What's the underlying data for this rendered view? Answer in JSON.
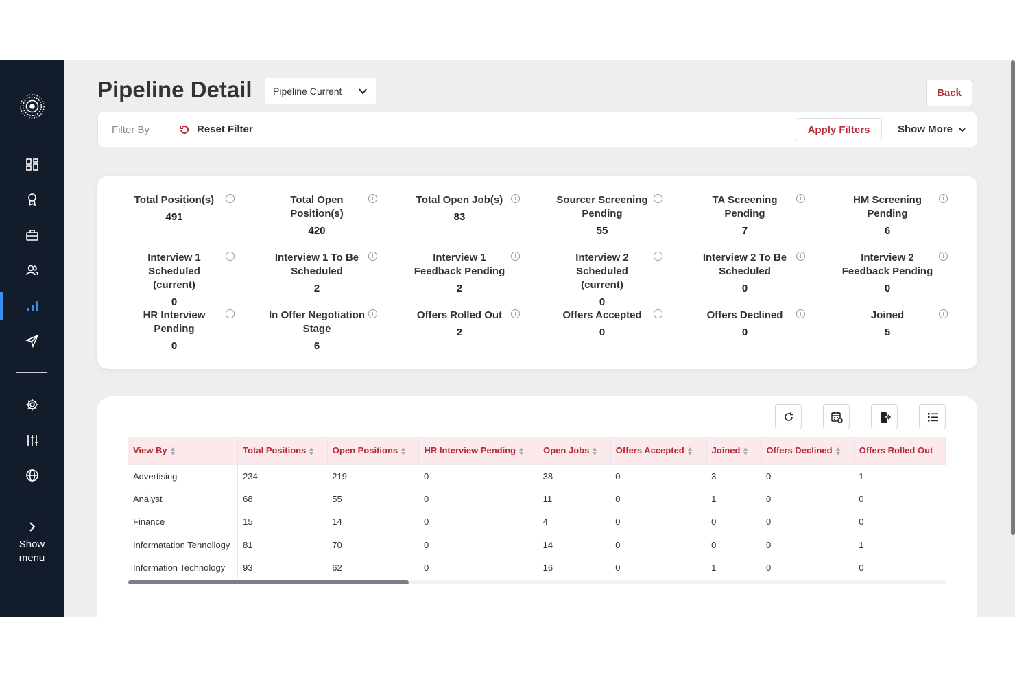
{
  "sidebar": {
    "items": [
      {
        "icon": "dashboard-icon"
      },
      {
        "icon": "award-icon"
      },
      {
        "icon": "briefcase-icon"
      },
      {
        "icon": "users-icon"
      },
      {
        "icon": "bar-chart-icon",
        "active": true
      },
      {
        "icon": "send-icon"
      },
      {
        "icon": "gear-icon"
      },
      {
        "icon": "sliders-icon"
      },
      {
        "icon": "globe-icon"
      }
    ],
    "show_menu": [
      "Show",
      "menu"
    ]
  },
  "header": {
    "title": "Pipeline Detail",
    "select_value": "Pipeline Current",
    "back_label": "Back"
  },
  "filter": {
    "label": "Filter By",
    "reset_label": "Reset Filter",
    "apply_label": "Apply Filters",
    "show_more_label": "Show More"
  },
  "stats": [
    {
      "label": "Total Position(s)",
      "value": "491"
    },
    {
      "label": "Total Open Position(s)",
      "value": "420"
    },
    {
      "label": "Total Open Job(s)",
      "value": "83"
    },
    {
      "label": "Sourcer Screening Pending",
      "value": "55"
    },
    {
      "label": "TA Screening Pending",
      "value": "7"
    },
    {
      "label": "HM Screening Pending",
      "value": "6"
    },
    {
      "label": "Interview 1 Scheduled (current)",
      "value": "0"
    },
    {
      "label": "Interview 1 To Be Scheduled",
      "value": "2"
    },
    {
      "label": "Interview 1 Feedback Pending",
      "value": "2"
    },
    {
      "label": "Interview 2 Scheduled (current)",
      "value": "0"
    },
    {
      "label": "Interview 2 To Be Scheduled",
      "value": "0"
    },
    {
      "label": "Interview 2 Feedback Pending",
      "value": "0"
    },
    {
      "label": "HR Interview Pending",
      "value": "0"
    },
    {
      "label": "In Offer Negotiation Stage",
      "value": "6"
    },
    {
      "label": "Offers Rolled Out",
      "value": "2"
    },
    {
      "label": "Offers Accepted",
      "value": "0"
    },
    {
      "label": "Offers Declined",
      "value": "0"
    },
    {
      "label": "Joined",
      "value": "5"
    }
  ],
  "info_glyph": "i",
  "table": {
    "columns": [
      "View By",
      "Total Positions",
      "Open Positions",
      "HR Interview Pending",
      "Open Jobs",
      "Offers Accepted",
      "Joined",
      "Offers Declined",
      "Offers Rolled Out"
    ],
    "rows": [
      [
        "Advertising",
        "234",
        "219",
        "0",
        "38",
        "0",
        "3",
        "0",
        "1"
      ],
      [
        "Analyst",
        "68",
        "55",
        "0",
        "11",
        "0",
        "1",
        "0",
        "0"
      ],
      [
        "Finance",
        "15",
        "14",
        "0",
        "4",
        "0",
        "0",
        "0",
        "0"
      ],
      [
        "Informatation Tehnollogy",
        "81",
        "70",
        "0",
        "14",
        "0",
        "0",
        "0",
        "1"
      ],
      [
        "Information Technology",
        "93",
        "62",
        "0",
        "16",
        "0",
        "1",
        "0",
        "0"
      ]
    ]
  },
  "toolbar": [
    "refresh-icon",
    "calendar-icon",
    "export-icon",
    "list-icon"
  ],
  "colors": {
    "accent": "#b52a35",
    "sidebar": "#121c2b",
    "header_bg": "#fbe9ec",
    "active": "#3b8ff0"
  }
}
